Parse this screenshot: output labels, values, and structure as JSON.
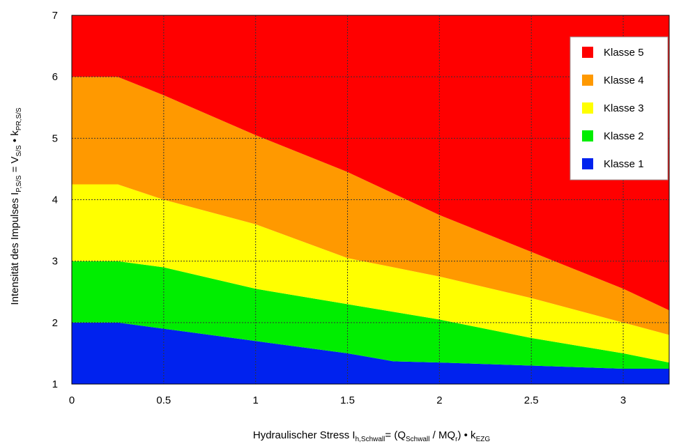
{
  "chart_data": {
    "type": "area",
    "xlabel": {
      "main": "Hydraulischer Stress I",
      "main_sub": "h,Schwall",
      "eq": "= (Q",
      "q_sub": "Schwall",
      "mid": " / MQ",
      "mq_sub": "r",
      "tail": ") • k",
      "k_sub": "EZG"
    },
    "ylabel": {
      "main": "Intensität des Impulses I",
      "main_sub": "P,S/S",
      "eq": " = V",
      "v_sub": "S/S",
      "tail": " • k",
      "k_sub": "PR,S/S"
    },
    "xlim": [
      0,
      3.25
    ],
    "ylim": [
      1,
      7
    ],
    "x_ticks": [
      "0",
      "0.5",
      "1",
      "1.5",
      "2",
      "2.5",
      "3"
    ],
    "x_tick_values": [
      0,
      0.5,
      1,
      1.5,
      2,
      2.5,
      3
    ],
    "y_ticks": [
      "1",
      "2",
      "3",
      "4",
      "5",
      "6",
      "7"
    ],
    "y_tick_values": [
      1,
      2,
      3,
      4,
      5,
      6,
      7
    ],
    "grid": true,
    "legend_position": "top-right",
    "legend": [
      {
        "label": "Klasse 5",
        "color": "#ff0000"
      },
      {
        "label": "Klasse 4",
        "color": "#ff9900"
      },
      {
        "label": "Klasse 3",
        "color": "#ffff00"
      },
      {
        "label": "Klasse 2",
        "color": "#00ee00"
      },
      {
        "label": "Klasse 1",
        "color": "#0022ee"
      }
    ],
    "boundaries": [
      {
        "name": "Klasse 1 / Klasse 2",
        "x": [
          0,
          0.25,
          0.5,
          1,
          1.5,
          1.75,
          2,
          2.5,
          3,
          3.25
        ],
        "y": [
          2,
          2,
          1.9,
          1.7,
          1.5,
          1.37,
          1.35,
          1.3,
          1.25,
          1.25
        ]
      },
      {
        "name": "Klasse 2 / Klasse 3",
        "x": [
          0,
          0.25,
          0.5,
          1,
          1.5,
          2,
          2.5,
          3,
          3.25
        ],
        "y": [
          3,
          3,
          2.9,
          2.55,
          2.3,
          2.05,
          1.75,
          1.5,
          1.35
        ]
      },
      {
        "name": "Klasse 3 / Klasse 4",
        "x": [
          0,
          0.25,
          0.5,
          1,
          1.5,
          2,
          2.5,
          3,
          3.25
        ],
        "y": [
          4.25,
          4.25,
          4.0,
          3.6,
          3.05,
          2.75,
          2.4,
          2.0,
          1.8
        ]
      },
      {
        "name": "Klasse 4 / Klasse 5",
        "x": [
          0,
          0.25,
          0.5,
          1,
          1.5,
          2,
          2.5,
          3,
          3.25
        ],
        "y": [
          6,
          6,
          5.7,
          5.05,
          4.45,
          3.75,
          3.15,
          2.55,
          2.2
        ]
      }
    ],
    "fill_colors": [
      "#0022ee",
      "#00ee00",
      "#ffff00",
      "#ff9900",
      "#ff0000"
    ]
  }
}
